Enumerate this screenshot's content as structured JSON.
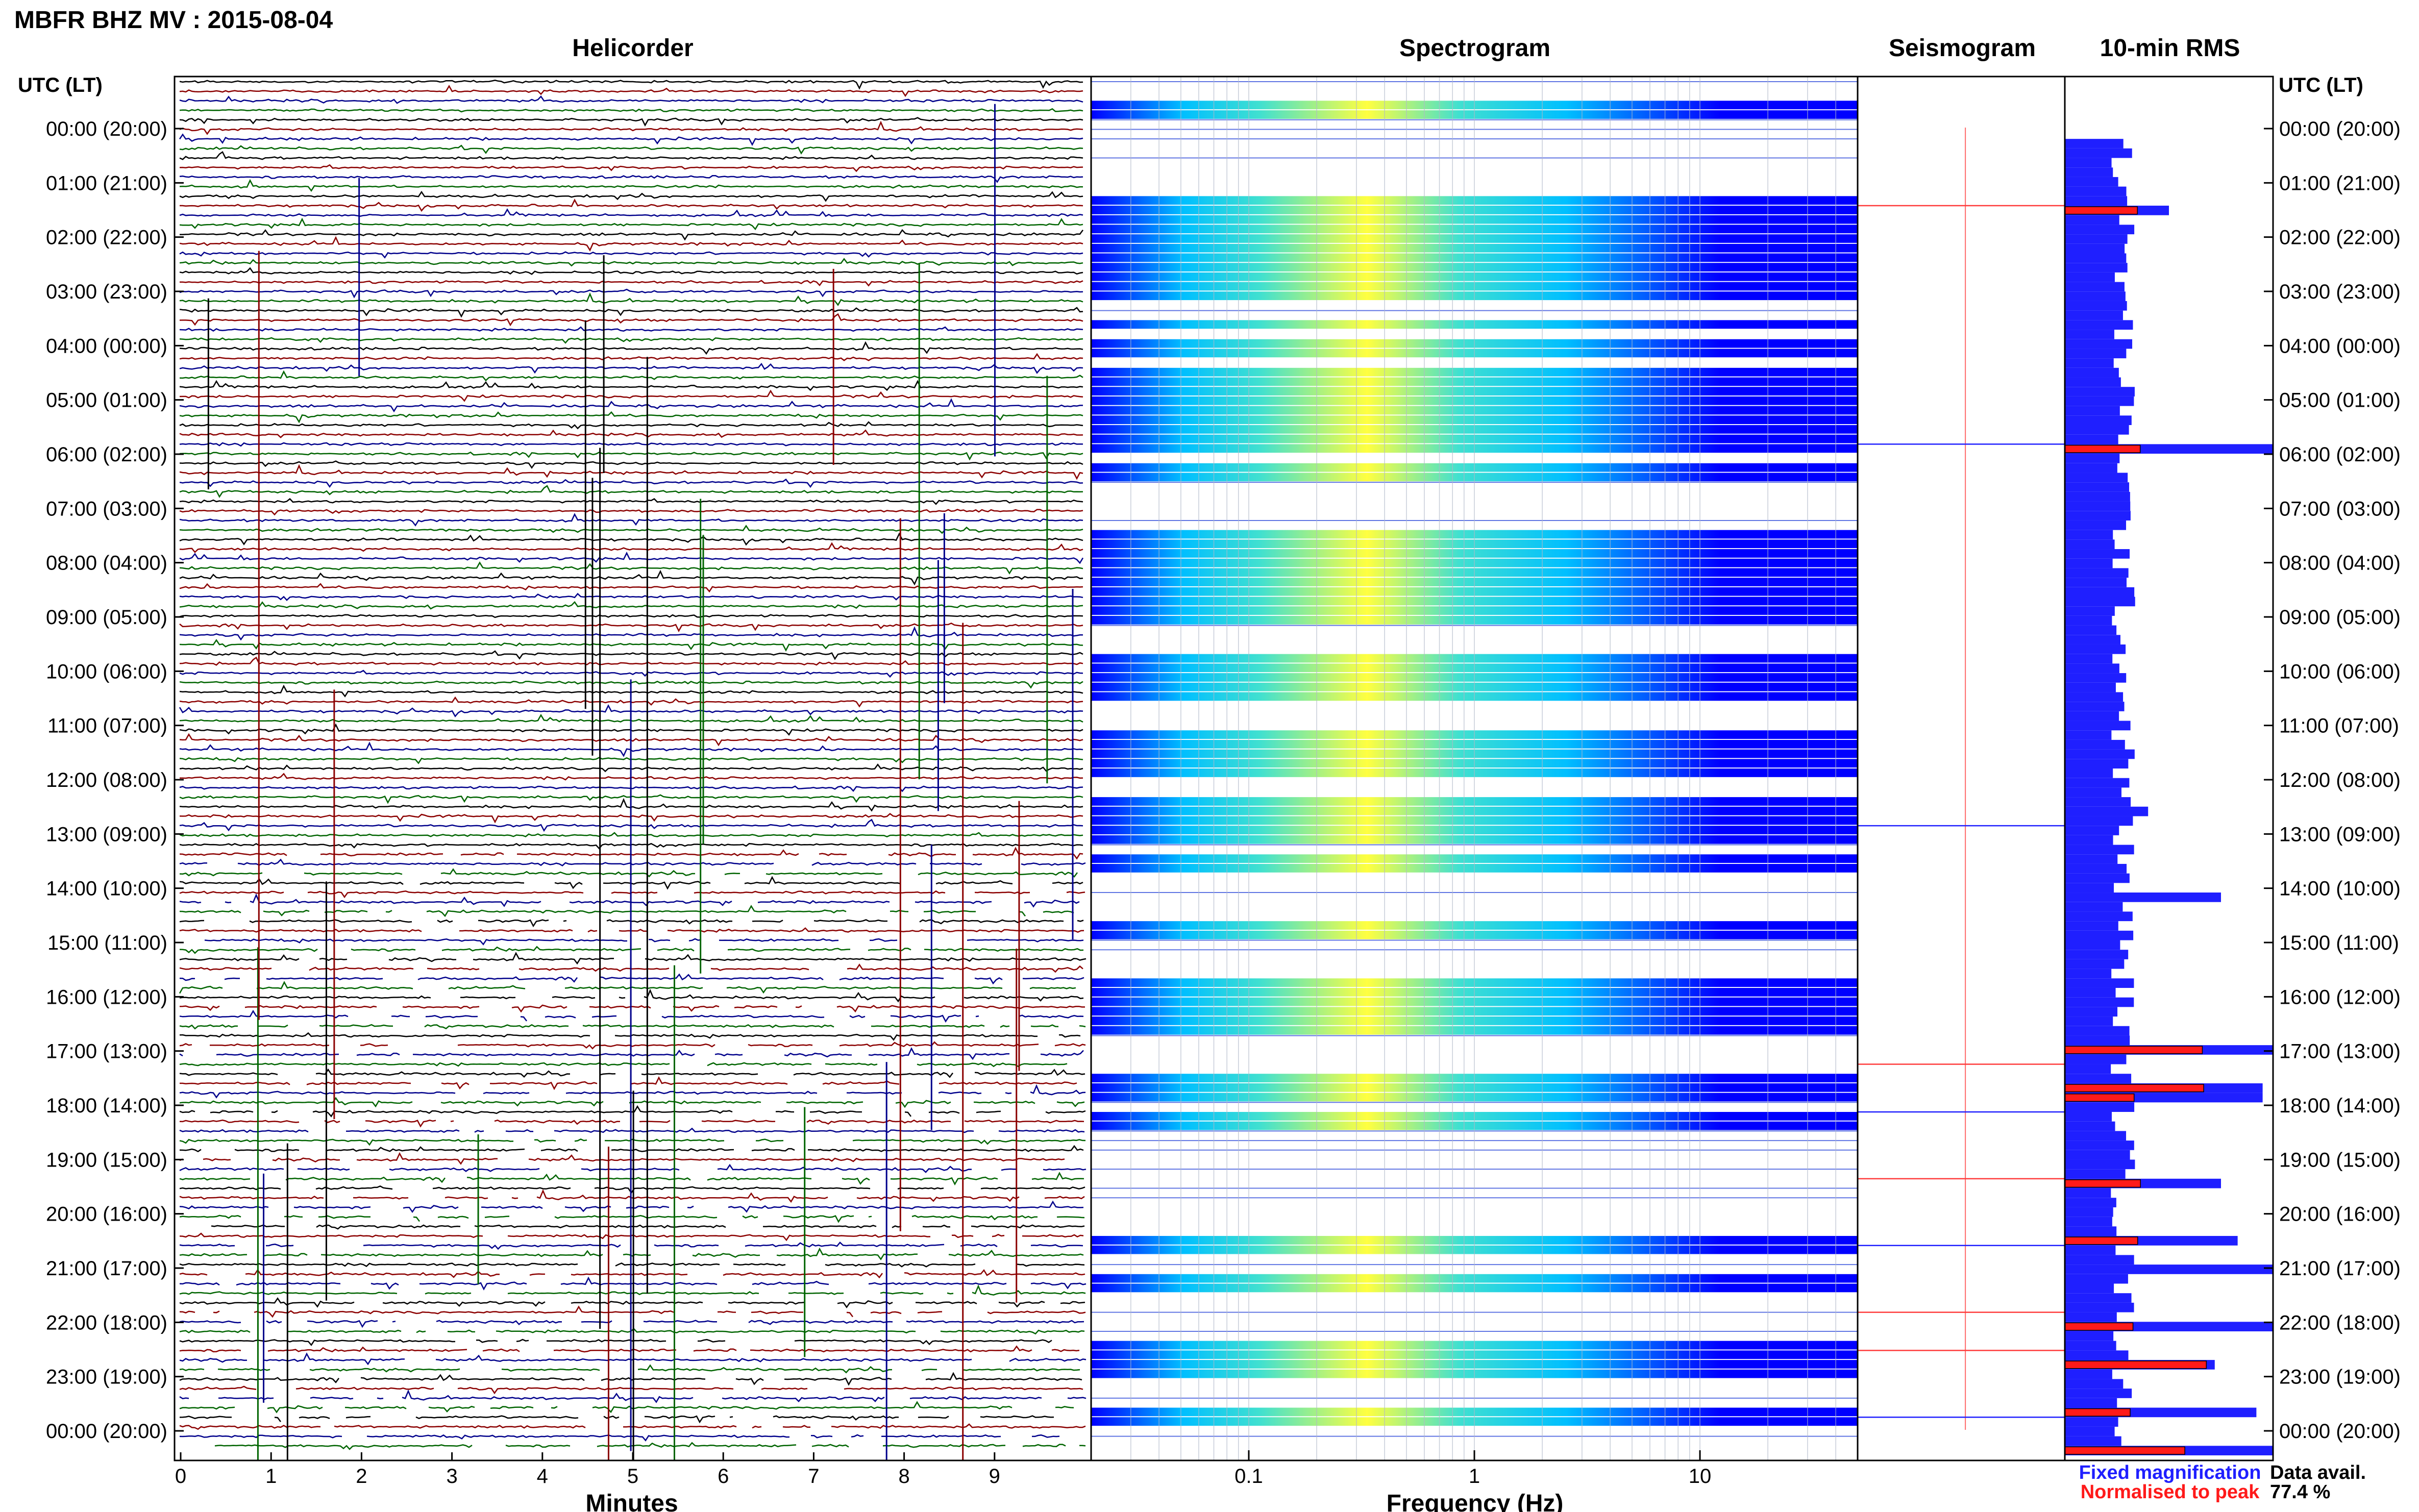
{
  "figure": {
    "title": "MBFR BHZ MV : 2015-08-04",
    "panels": {
      "helicorder": "Helicorder",
      "spectrogram": "Spectrogram",
      "seismogram": "Seismogram",
      "rms": "10-min RMS"
    },
    "left_axis_title": "UTC (LT)",
    "right_axis_title": "UTC (LT)",
    "legend": {
      "fixed": "Fixed magnification",
      "normalised": "Normalised to peak",
      "fixed_color": "#1f1fff",
      "normalised_color": "#ff1a1a"
    },
    "data_avail_label": "Data avail.",
    "data_avail_value": "77.4 %"
  },
  "chart_data": [
    {
      "type": "line",
      "title": "Helicorder",
      "xlabel": "Minutes",
      "ylabel": "UTC (LT)",
      "xlim": [
        0,
        10
      ],
      "x_ticks": [
        0,
        1,
        2,
        3,
        4,
        5,
        6,
        7,
        8,
        9
      ],
      "categories": [
        "00:00 (20:00)",
        "01:00 (21:00)",
        "02:00 (22:00)",
        "03:00 (23:00)",
        "04:00 (00:00)",
        "05:00 (01:00)",
        "06:00 (02:00)",
        "07:00 (03:00)",
        "08:00 (04:00)",
        "09:00 (05:00)",
        "10:00 (06:00)",
        "11:00 (07:00)",
        "12:00 (08:00)",
        "13:00 (09:00)",
        "14:00 (10:00)",
        "15:00 (11:00)",
        "16:00 (12:00)",
        "17:00 (13:00)",
        "18:00 (14:00)",
        "19:00 (15:00)",
        "20:00 (16:00)",
        "21:00 (17:00)",
        "22:00 (18:00)",
        "23:00 (19:00)",
        "00:00 (20:00)"
      ],
      "trace_colors": [
        "#000000",
        "#8b0000",
        "#00008b",
        "#006400"
      ]
    },
    {
      "type": "heatmap",
      "title": "Spectrogram",
      "xlabel": "Frequency (Hz)",
      "x_scale": "log",
      "xlim": [
        0.02,
        50
      ],
      "x_tick_labels": [
        "0.1",
        "1",
        "10"
      ],
      "colormap": [
        "#0000ff",
        "#00bfff",
        "#40e0d0",
        "#ffff40"
      ],
      "peak_band_hz": [
        0.2,
        1
      ]
    },
    {
      "type": "line",
      "title": "Seismogram"
    },
    {
      "type": "bar",
      "title": "10-min RMS",
      "series": [
        {
          "name": "Fixed magnification",
          "color": "#1f1fff"
        },
        {
          "name": "Normalised to peak",
          "color": "#ff1a1a"
        }
      ]
    }
  ]
}
